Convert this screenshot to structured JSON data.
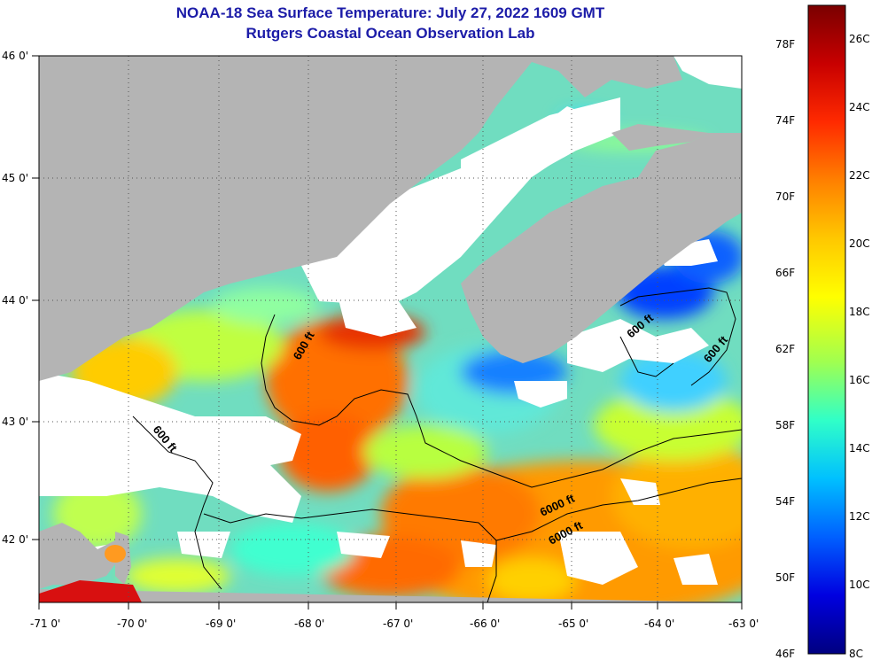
{
  "title": "NOAA-18 Sea Surface Temperature:  July 27, 2022 1609 GMT",
  "subtitle": "Rutgers Coastal Ocean Observation Lab",
  "axes": {
    "lon_labels": [
      "-71 0'",
      "-70 0'",
      "-69 0'",
      "-68 0'",
      "-67 0'",
      "-66 0'",
      "-65 0'",
      "-64 0'",
      "-63 0'"
    ],
    "lat_labels": [
      "46 0'",
      "45 0'",
      "44 0'",
      "43 0'",
      "42 0'"
    ]
  },
  "colorbar": {
    "f_labels": [
      "78F",
      "74F",
      "70F",
      "66F",
      "62F",
      "58F",
      "54F",
      "50F",
      "46F"
    ],
    "c_labels": [
      "26C",
      "24C",
      "22C",
      "20C",
      "18C",
      "16C",
      "14C",
      "12C",
      "10C",
      "8C"
    ],
    "stops": [
      "#7a0000",
      "#c80000",
      "#ff2a00",
      "#ff8000",
      "#ffc800",
      "#ffff00",
      "#a0ff50",
      "#30ffc8",
      "#00c0ff",
      "#0060ff",
      "#0000e0",
      "#000080"
    ]
  },
  "contours": {
    "labels": [
      "600 ft",
      "600 ft",
      "600 ft",
      "600 ft",
      "6000 ft"
    ]
  },
  "colors": {
    "land": "#b4b4b4",
    "cloud": "#ffffff",
    "title": "#1c1ca8"
  }
}
